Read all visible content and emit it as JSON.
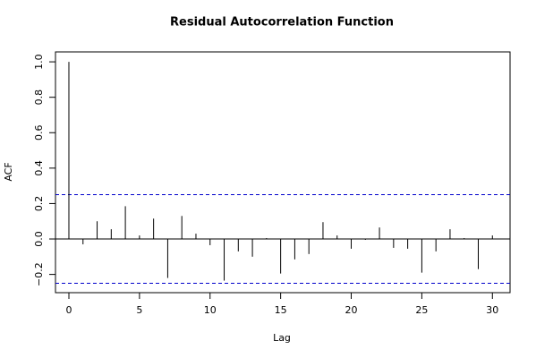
{
  "chart_data": {
    "type": "acf",
    "title": "Residual Autocorrelation Function",
    "x_label": "Lag",
    "y_label": "ACF",
    "x": [
      0,
      1,
      2,
      3,
      4,
      5,
      6,
      7,
      8,
      9,
      10,
      11,
      12,
      13,
      14,
      15,
      16,
      17,
      18,
      19,
      20,
      21,
      22,
      23,
      24,
      25,
      26,
      27,
      28,
      29,
      30
    ],
    "values": [
      1.0,
      -0.03,
      0.1,
      0.055,
      0.185,
      0.02,
      0.115,
      -0.22,
      0.13,
      0.03,
      -0.035,
      -0.235,
      -0.07,
      -0.1,
      0.005,
      -0.195,
      -0.115,
      -0.085,
      0.095,
      0.02,
      -0.055,
      -0.005,
      0.065,
      -0.05,
      -0.055,
      -0.19,
      -0.07,
      0.055,
      0.005,
      -0.17,
      0.02
    ],
    "color": "#000000",
    "ci_lines": [
      0.25,
      -0.25
    ],
    "ci_color": "#0000cc",
    "xlim": [
      -0.95,
      31.25
    ],
    "ylim": [
      -0.303,
      1.056
    ],
    "xticks": [
      0,
      5,
      10,
      15,
      20,
      25,
      30
    ],
    "yticks": [
      {
        "value": -0.2,
        "label": "−0.2"
      },
      {
        "value": 0,
        "label": "0.0"
      },
      {
        "value": 0.2,
        "label": "0.2"
      },
      {
        "value": 0.4,
        "label": "0.4"
      },
      {
        "value": 0.6,
        "label": "0.6"
      },
      {
        "value": 0.8,
        "label": "0.8"
      },
      {
        "value": 1.0,
        "label": "1.0"
      }
    ]
  }
}
